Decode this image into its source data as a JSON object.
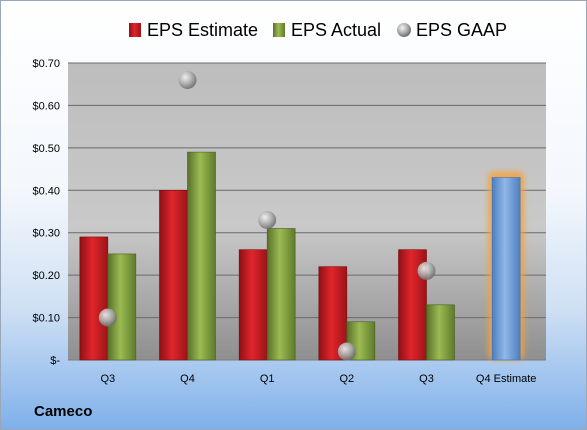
{
  "company": "Cameco",
  "chart_data": {
    "type": "bar",
    "categories": [
      "Q3",
      "Q4",
      "Q1",
      "Q2",
      "Q3",
      "Q4 Estimate"
    ],
    "series": [
      {
        "name": "EPS Estimate",
        "type": "bar",
        "color": "#c0191e",
        "values": [
          0.29,
          0.4,
          0.26,
          0.22,
          0.26,
          null
        ]
      },
      {
        "name": "EPS Actual",
        "type": "bar",
        "color": "#7d9b3a",
        "values": [
          0.25,
          0.49,
          0.31,
          0.09,
          0.13,
          null
        ]
      },
      {
        "name": "EPS GAAP",
        "type": "scatter",
        "color": "#a9a9a9",
        "values": [
          0.1,
          0.66,
          0.33,
          0.02,
          0.21,
          null
        ]
      }
    ],
    "forecast": {
      "category": "Q4 Estimate",
      "value": 0.43,
      "color": "#6f9fd8",
      "highlight_color": "#f4a23c"
    },
    "y_ticks": [
      "$-",
      "$0.10",
      "$0.20",
      "$0.30",
      "$0.40",
      "$0.50",
      "$0.60",
      "$0.70"
    ],
    "ylim": [
      0,
      0.7
    ],
    "grid": true,
    "legend_position": "top"
  }
}
